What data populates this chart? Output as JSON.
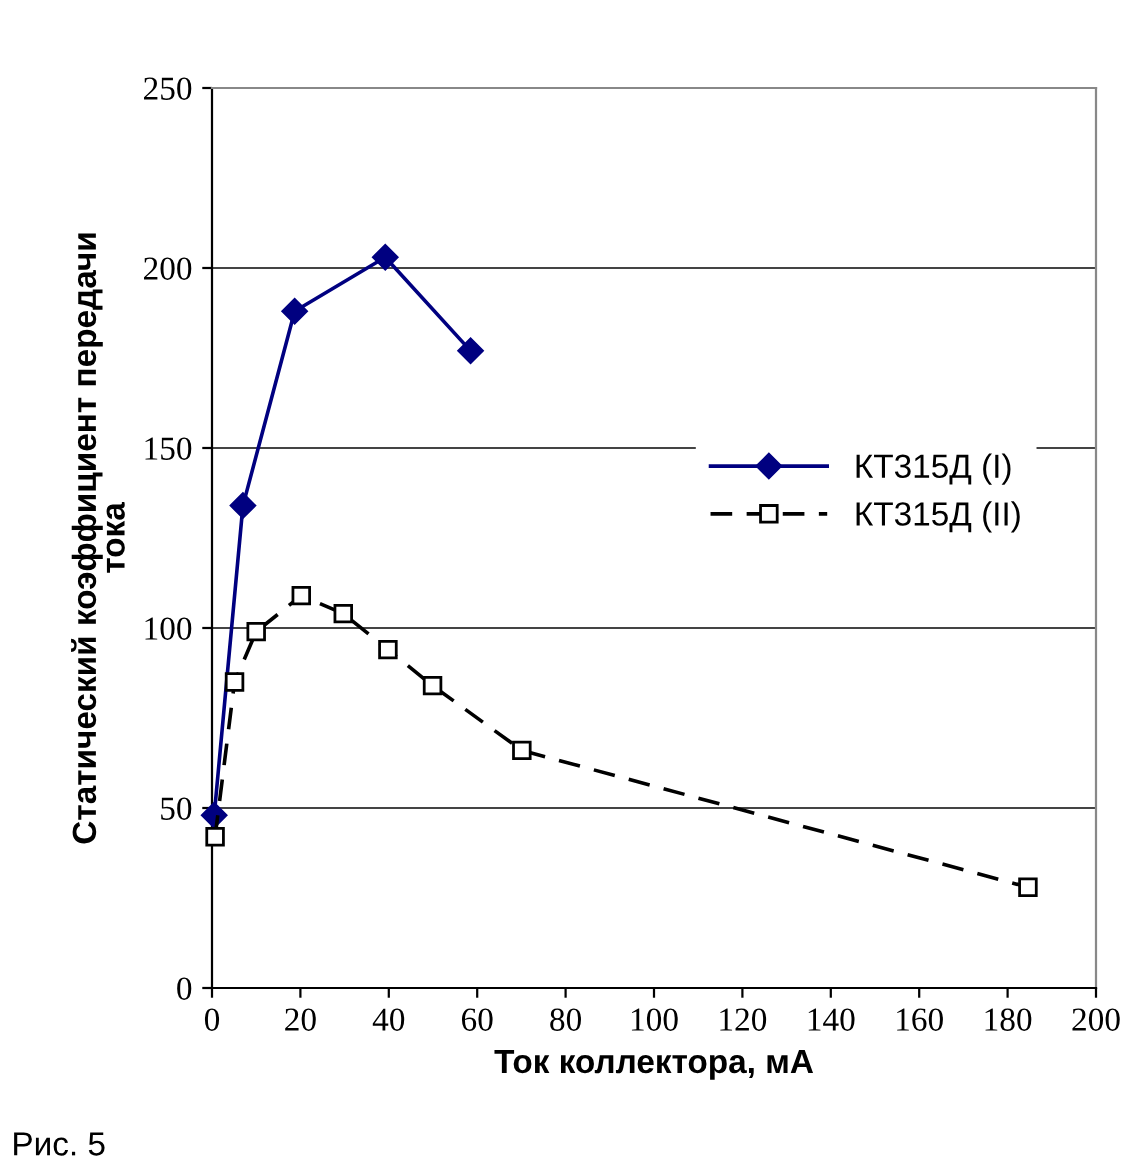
{
  "chart_data": {
    "type": "line",
    "xlabel": "Ток коллектора, мА",
    "ylabel": "Статический коэффициент передачи\nтока",
    "annotations": [
      "Рис. 5"
    ],
    "xlim": [
      0,
      200
    ],
    "xticks": [
      0,
      20,
      40,
      60,
      80,
      100,
      120,
      140,
      160,
      180,
      200
    ],
    "ylim": [
      0,
      250
    ],
    "yticks": [
      0,
      50,
      100,
      150,
      200,
      250
    ],
    "grid": "y",
    "legend": "center right",
    "series": [
      {
        "name": "КТ315Д (I)",
        "color": "#000080",
        "x": [
          0.5,
          7,
          18.7,
          39.2,
          58.5
        ],
        "values": [
          48,
          134,
          188,
          203,
          177
        ],
        "marker": "diamond",
        "line_style": "solid"
      },
      {
        "name": "КТ315Д (II)",
        "color": "#000000",
        "x": [
          0.7,
          5.1,
          10,
          20.2,
          29.7,
          39.8,
          49.9,
          70.1,
          184.6
        ],
        "values": [
          42,
          85,
          99,
          109,
          104,
          94,
          84,
          66,
          28
        ],
        "marker": "square",
        "line_style": "dashed"
      }
    ]
  }
}
